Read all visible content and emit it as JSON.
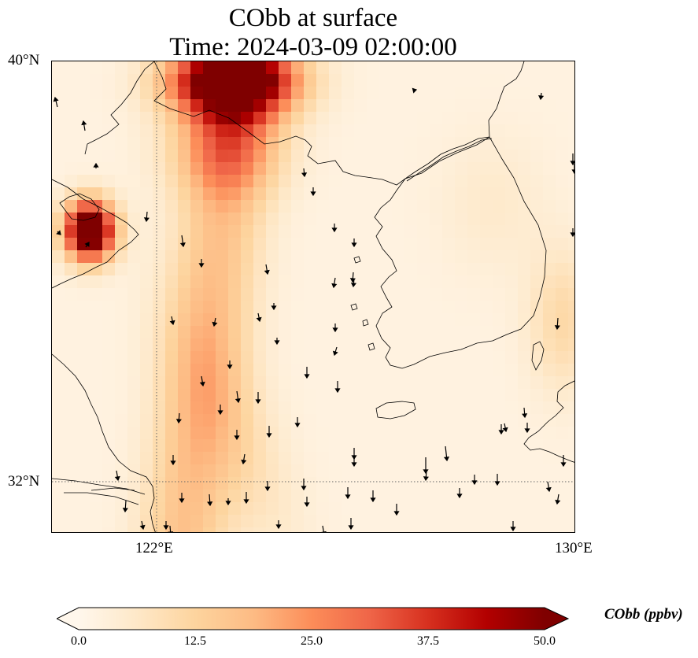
{
  "title": {
    "line1": "CObb at surface",
    "line2": "Time: 2024-03-09 02:00:00"
  },
  "map": {
    "lat_labels": [
      "40°N",
      "32°N"
    ],
    "lon_labels": [
      "122°E",
      "130°E"
    ],
    "extent": {
      "lon_min": 120,
      "lon_max": 130,
      "lat_min": 31,
      "lat_max": 40
    },
    "gridlines": {
      "lon": [
        122
      ],
      "lat": [
        32
      ],
      "style": "dotted"
    },
    "variable": "CObb",
    "level": "surface",
    "colormap": "OrRd"
  },
  "colorbar": {
    "label": "CObb (ppbv)",
    "ticks": [
      "0.0",
      "12.5",
      "25.0",
      "37.5",
      "50.0"
    ],
    "min": 0,
    "max": 50,
    "extend": "both",
    "colors": [
      "#fff7ec",
      "#fee8c8",
      "#fdd49e",
      "#fdbb84",
      "#fc8d59",
      "#ef6548",
      "#d7301f",
      "#b30000",
      "#7f0000"
    ]
  }
}
